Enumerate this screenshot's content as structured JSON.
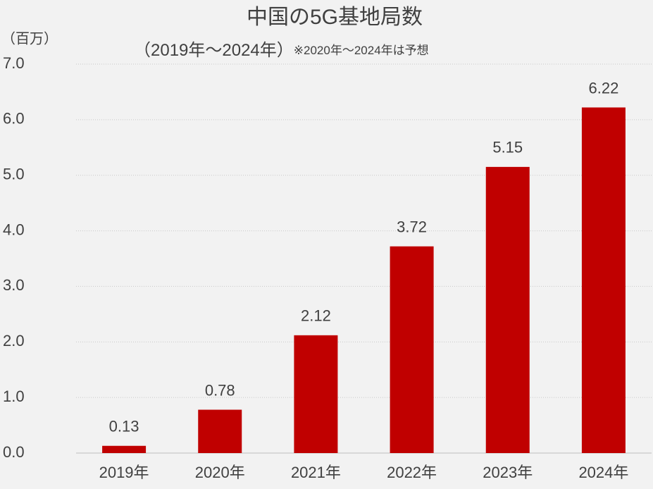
{
  "chart_data": {
    "type": "bar",
    "title": "中国の5G基地局数",
    "subtitle": "（2019年～2024年）",
    "note": "※2020年～2024年は予想",
    "y_label": "（百万）",
    "categories": [
      "2019年",
      "2020年",
      "2021年",
      "2022年",
      "2023年",
      "2024年"
    ],
    "values": [
      0.13,
      0.78,
      2.12,
      3.72,
      5.15,
      6.22
    ],
    "color": "#c00000",
    "ylim": [
      0,
      7
    ],
    "yticks": [
      {
        "value": 0,
        "label": "0.0"
      },
      {
        "value": 1,
        "label": "1.0"
      },
      {
        "value": 2,
        "label": "2.0"
      },
      {
        "value": 3,
        "label": "3.0"
      },
      {
        "value": 4,
        "label": "4.0"
      },
      {
        "value": 5,
        "label": "5.0"
      },
      {
        "value": 6,
        "label": "6.0"
      },
      {
        "value": 7,
        "label": "7.0"
      }
    ],
    "grid": true
  }
}
